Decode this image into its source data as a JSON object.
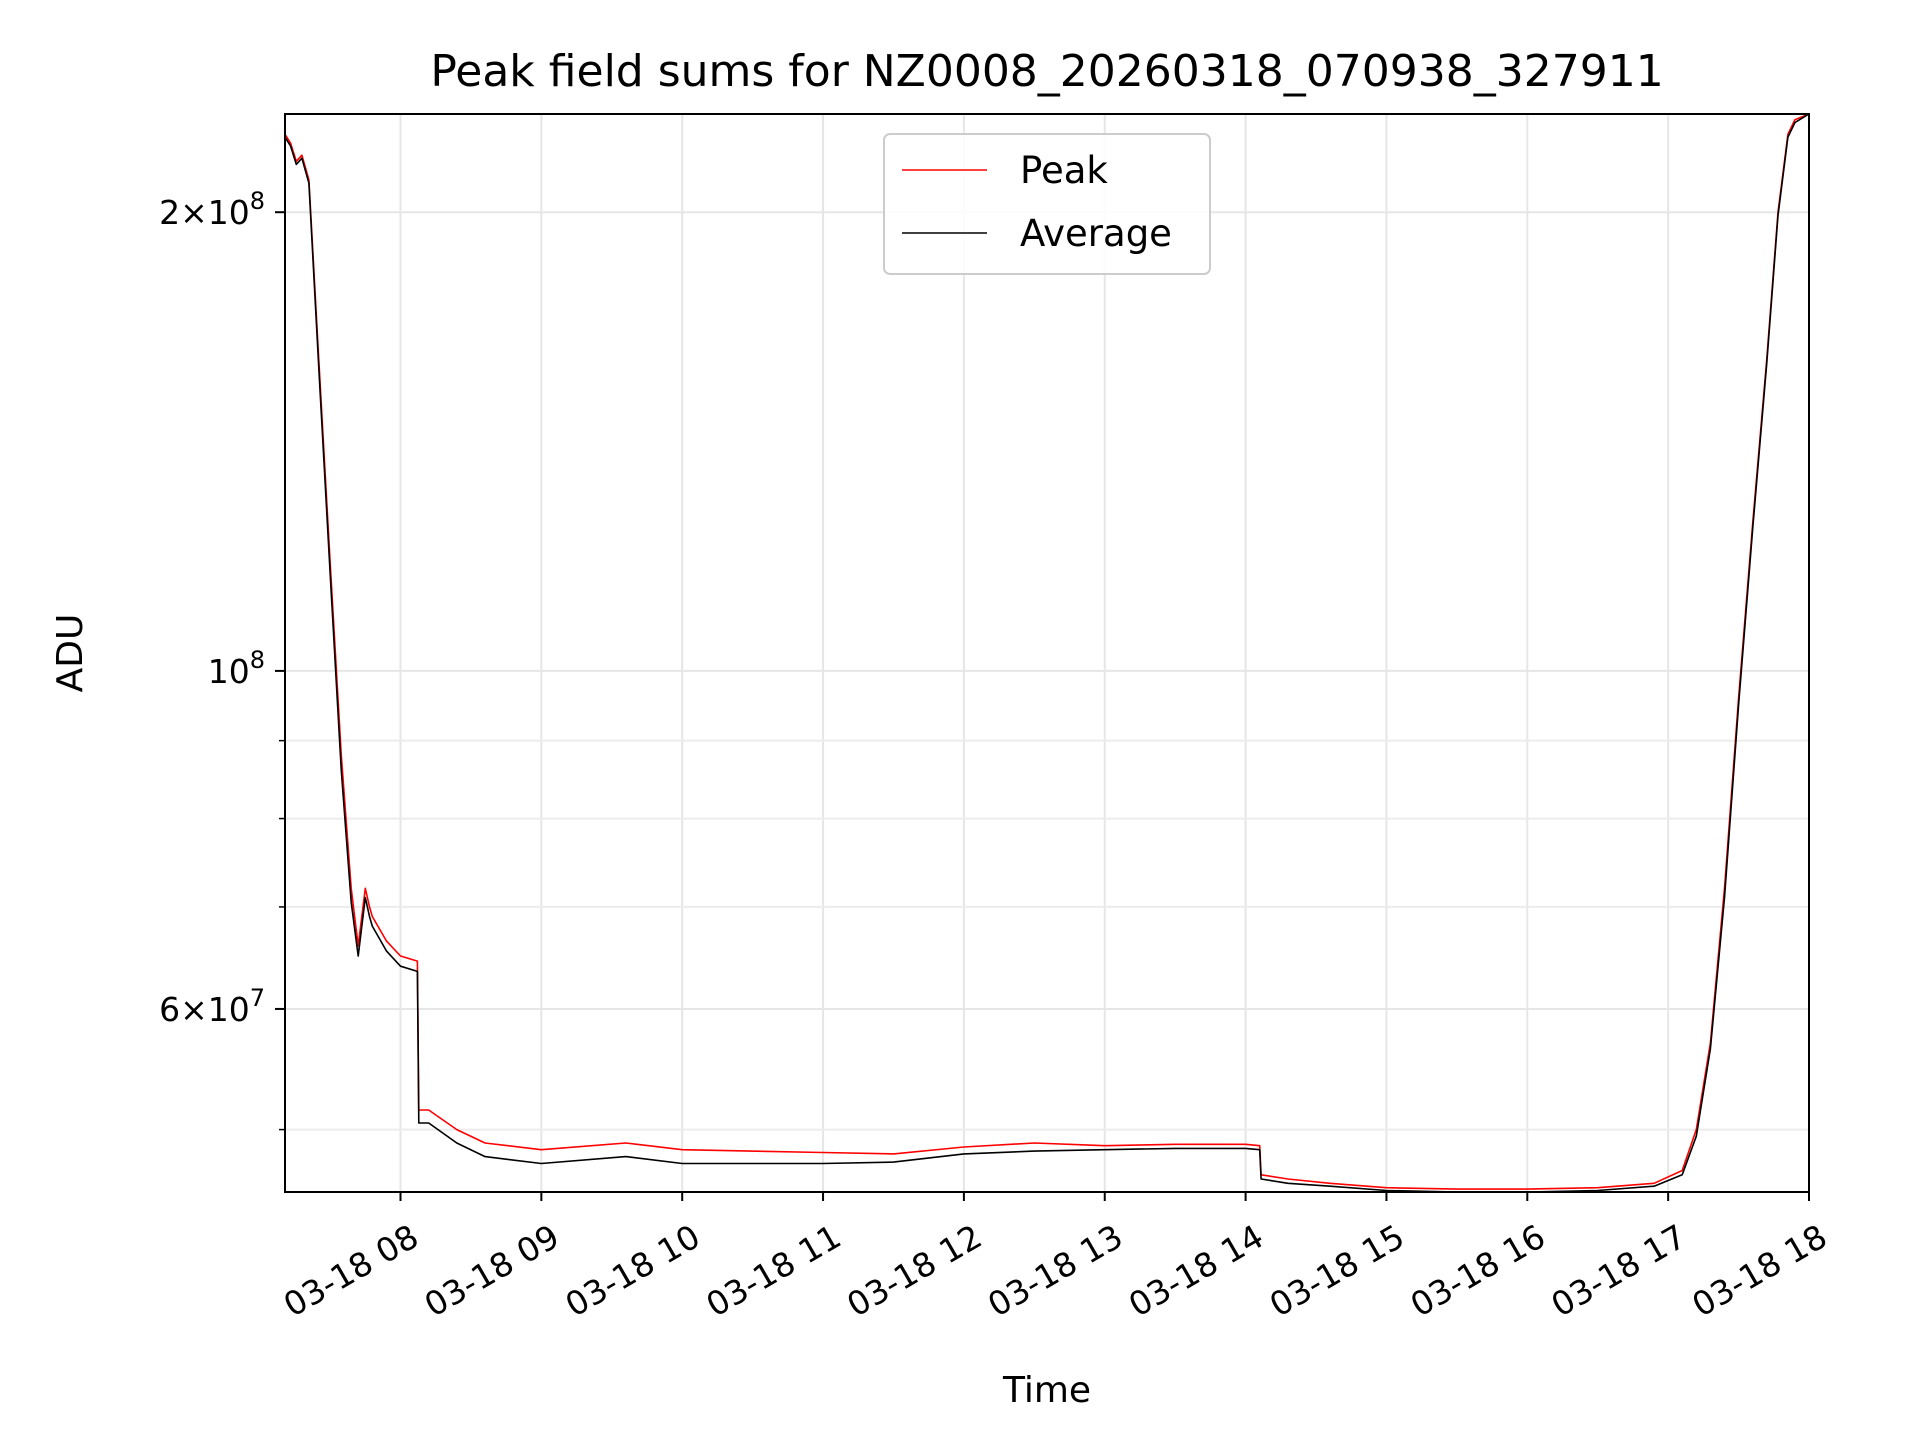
{
  "chart_data": {
    "type": "line",
    "title": "Peak field sums for NZ0008_20260318_070938_327911",
    "xlabel": "Time",
    "ylabel": "ADU",
    "yscale": "log",
    "ylim": [
      45500000,
      232000000
    ],
    "xlim_hours": [
      7.18,
      18.0
    ],
    "grid": true,
    "legend_location": "upper-center",
    "x_ticks": [
      {
        "hour": 8,
        "label": "03-18 08"
      },
      {
        "hour": 9,
        "label": "03-18 09"
      },
      {
        "hour": 10,
        "label": "03-18 10"
      },
      {
        "hour": 11,
        "label": "03-18 11"
      },
      {
        "hour": 12,
        "label": "03-18 12"
      },
      {
        "hour": 13,
        "label": "03-18 13"
      },
      {
        "hour": 14,
        "label": "03-18 14"
      },
      {
        "hour": 15,
        "label": "03-18 15"
      },
      {
        "hour": 16,
        "label": "03-18 16"
      },
      {
        "hour": 17,
        "label": "03-18 17"
      },
      {
        "hour": 18,
        "label": "03-18 18"
      }
    ],
    "y_major_ticks": [
      {
        "value": 200000000,
        "mantissa": "2",
        "base": "10",
        "exp": "8"
      },
      {
        "value": 100000000,
        "mantissa": "",
        "base": "10",
        "exp": "8"
      },
      {
        "value": 60000000,
        "mantissa": "6",
        "base": "10",
        "exp": "7"
      }
    ],
    "y_minor_ticks": [
      50000000,
      70000000,
      80000000,
      90000000
    ],
    "series": [
      {
        "name": "Peak",
        "color": "#ff0000",
        "x_hours": [
          7.18,
          7.22,
          7.26,
          7.3,
          7.35,
          7.42,
          7.5,
          7.58,
          7.65,
          7.7,
          7.75,
          7.78,
          7.8,
          7.9,
          8.0,
          8.12,
          8.13,
          8.2,
          8.4,
          8.6,
          9.0,
          9.6,
          10.0,
          11.0,
          11.5,
          12.0,
          12.5,
          13.0,
          13.5,
          14.0,
          14.1,
          14.11,
          14.3,
          14.6,
          15.0,
          15.5,
          16.0,
          16.5,
          16.9,
          17.1,
          17.2,
          17.3,
          17.4,
          17.5,
          17.6,
          17.7,
          17.78,
          17.85,
          17.9,
          18.0
        ],
        "values": [
          225000000,
          222000000,
          216000000,
          218000000,
          210000000,
          160000000,
          118000000,
          88000000,
          72000000,
          66000000,
          72000000,
          70000000,
          69000000,
          66500000,
          65000000,
          64500000,
          51500000,
          51500000,
          50000000,
          49000000,
          48500000,
          49000000,
          48500000,
          48300000,
          48200000,
          48700000,
          49000000,
          48800000,
          48900000,
          48900000,
          48800000,
          46700000,
          46400000,
          46100000,
          45800000,
          45700000,
          45700000,
          45800000,
          46100000,
          47000000,
          50000000,
          57000000,
          72000000,
          96000000,
          125000000,
          160000000,
          200000000,
          225000000,
          230000000,
          232000000
        ]
      },
      {
        "name": "Average",
        "color": "#000000",
        "x_hours": [
          7.18,
          7.22,
          7.26,
          7.3,
          7.35,
          7.42,
          7.5,
          7.58,
          7.65,
          7.7,
          7.75,
          7.78,
          7.8,
          7.9,
          8.0,
          8.12,
          8.13,
          8.2,
          8.4,
          8.6,
          9.0,
          9.6,
          10.0,
          11.0,
          11.5,
          12.0,
          12.5,
          13.0,
          13.5,
          14.0,
          14.1,
          14.11,
          14.3,
          14.6,
          15.0,
          15.5,
          16.0,
          16.5,
          16.9,
          17.1,
          17.2,
          17.3,
          17.4,
          17.5,
          17.6,
          17.7,
          17.78,
          17.85,
          17.9,
          18.0
        ],
        "values": [
          224000000,
          221000000,
          215000000,
          217000000,
          209000000,
          158000000,
          116000000,
          86000000,
          70500000,
          65000000,
          71000000,
          69000000,
          68000000,
          65500000,
          64000000,
          63500000,
          50500000,
          50500000,
          49000000,
          48000000,
          47500000,
          48000000,
          47500000,
          47500000,
          47600000,
          48200000,
          48400000,
          48500000,
          48600000,
          48600000,
          48500000,
          46400000,
          46100000,
          45900000,
          45600000,
          45500000,
          45500000,
          45600000,
          45900000,
          46700000,
          49500000,
          56500000,
          71000000,
          95000000,
          124000000,
          159000000,
          199000000,
          224000000,
          229000000,
          232000000
        ]
      }
    ]
  }
}
